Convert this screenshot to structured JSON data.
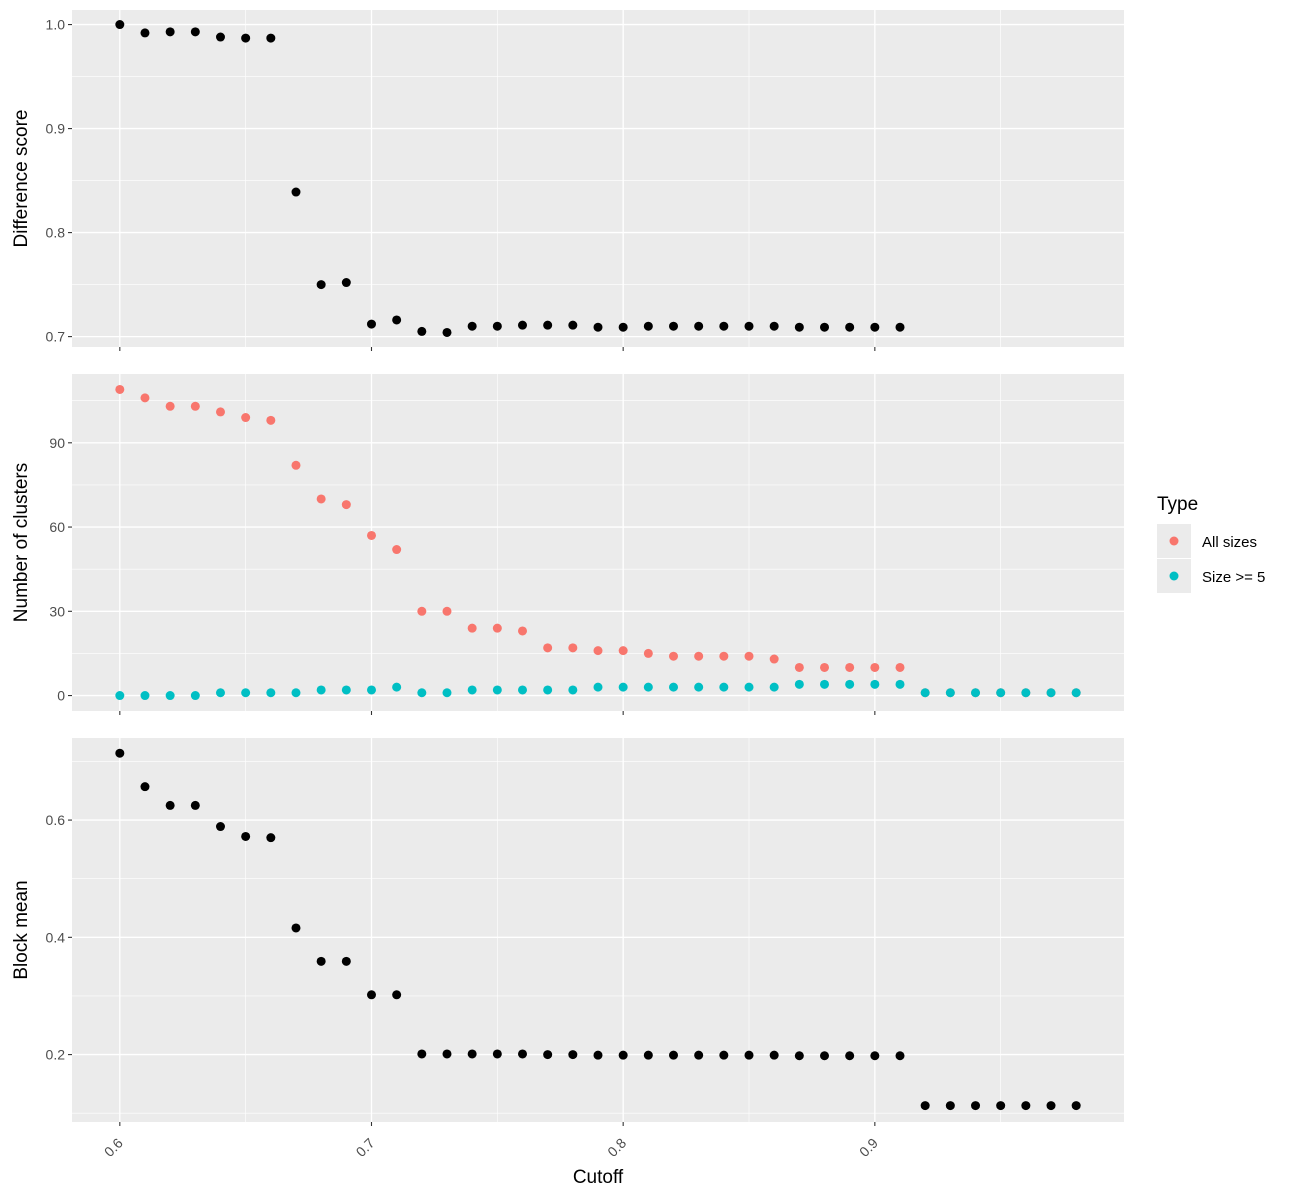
{
  "chart_data": [
    {
      "type": "scatter",
      "ylabel": "Difference score",
      "xlabel": "",
      "xlim": [
        0.581,
        0.999
      ],
      "ylim": [
        0.69,
        1.014
      ],
      "yticks": [
        "0.7",
        "0.8",
        "0.9",
        "1.0"
      ],
      "grid": true,
      "series": [
        {
          "color": "#000000",
          "x": [
            0.6,
            0.61,
            0.62,
            0.63,
            0.64,
            0.65,
            0.66,
            0.67,
            0.68,
            0.69,
            0.7,
            0.71,
            0.72,
            0.73,
            0.74,
            0.75,
            0.76,
            0.77,
            0.78,
            0.79,
            0.8,
            0.81,
            0.82,
            0.83,
            0.84,
            0.85,
            0.86,
            0.87,
            0.88,
            0.89,
            0.9,
            0.91
          ],
          "y": [
            1.0,
            0.992,
            0.993,
            0.993,
            0.988,
            0.987,
            0.987,
            0.839,
            0.75,
            0.752,
            0.712,
            0.716,
            0.705,
            0.704,
            0.71,
            0.71,
            0.711,
            0.711,
            0.711,
            0.709,
            0.709,
            0.71,
            0.71,
            0.71,
            0.71,
            0.71,
            0.71,
            0.709,
            0.709,
            0.709,
            0.709,
            0.709
          ]
        }
      ]
    },
    {
      "type": "scatter",
      "ylabel": "Number of clusters",
      "xlabel": "",
      "xlim": [
        0.581,
        0.999
      ],
      "ylim": [
        -5.5,
        114.5
      ],
      "yticks": [
        "0",
        "30",
        "60",
        "90"
      ],
      "grid": true,
      "legend": {
        "title": "Type",
        "position": "right",
        "entries": [
          "All sizes",
          "Size >= 5"
        ]
      },
      "series": [
        {
          "name": "All sizes",
          "color": "#F8766D",
          "x": [
            0.6,
            0.61,
            0.62,
            0.63,
            0.64,
            0.65,
            0.66,
            0.67,
            0.68,
            0.69,
            0.7,
            0.71,
            0.72,
            0.73,
            0.74,
            0.75,
            0.76,
            0.77,
            0.78,
            0.79,
            0.8,
            0.81,
            0.82,
            0.83,
            0.84,
            0.85,
            0.86,
            0.87,
            0.88,
            0.89,
            0.9,
            0.91,
            0.92,
            0.93,
            0.94,
            0.95,
            0.96,
            0.97,
            0.98
          ],
          "y": [
            109,
            106,
            103,
            103,
            101,
            99,
            98,
            82,
            70,
            68,
            57,
            52,
            30,
            30,
            24,
            24,
            23,
            17,
            17,
            16,
            16,
            15,
            14,
            14,
            14,
            14,
            13,
            10,
            10,
            10,
            10,
            10,
            1,
            1,
            1,
            1,
            1,
            1,
            1
          ]
        },
        {
          "name": "Size >= 5",
          "color": "#00BFC4",
          "x": [
            0.6,
            0.61,
            0.62,
            0.63,
            0.64,
            0.65,
            0.66,
            0.67,
            0.68,
            0.69,
            0.7,
            0.71,
            0.72,
            0.73,
            0.74,
            0.75,
            0.76,
            0.77,
            0.78,
            0.79,
            0.8,
            0.81,
            0.82,
            0.83,
            0.84,
            0.85,
            0.86,
            0.87,
            0.88,
            0.89,
            0.9,
            0.91,
            0.92,
            0.93,
            0.94,
            0.95,
            0.96,
            0.97,
            0.98
          ],
          "y": [
            0,
            0,
            0,
            0,
            1,
            1,
            1,
            1,
            2,
            2,
            2,
            3,
            1,
            1,
            2,
            2,
            2,
            2,
            2,
            3,
            3,
            3,
            3,
            3,
            3,
            3,
            3,
            4,
            4,
            4,
            4,
            4,
            1,
            1,
            1,
            1,
            1,
            1,
            1
          ]
        }
      ]
    },
    {
      "type": "scatter",
      "ylabel": "Block mean",
      "xlabel": "Cutoff",
      "xlim": [
        0.581,
        0.999
      ],
      "xticks": [
        "0.6",
        "0.7",
        "0.8",
        "0.9"
      ],
      "ylim": [
        0.085,
        0.74
      ],
      "yticks": [
        "0.2",
        "0.4",
        "0.6"
      ],
      "grid": true,
      "series": [
        {
          "color": "#000000",
          "x": [
            0.6,
            0.61,
            0.62,
            0.63,
            0.64,
            0.65,
            0.66,
            0.67,
            0.68,
            0.69,
            0.7,
            0.71,
            0.72,
            0.73,
            0.74,
            0.75,
            0.76,
            0.77,
            0.78,
            0.79,
            0.8,
            0.81,
            0.82,
            0.83,
            0.84,
            0.85,
            0.86,
            0.87,
            0.88,
            0.89,
            0.9,
            0.91,
            0.92,
            0.93,
            0.94,
            0.95,
            0.96,
            0.97,
            0.98
          ],
          "y": [
            0.714,
            0.657,
            0.625,
            0.625,
            0.589,
            0.572,
            0.57,
            0.416,
            0.359,
            0.359,
            0.302,
            0.302,
            0.201,
            0.201,
            0.201,
            0.201,
            0.201,
            0.2,
            0.2,
            0.199,
            0.199,
            0.199,
            0.199,
            0.199,
            0.199,
            0.199,
            0.199,
            0.198,
            0.198,
            0.198,
            0.198,
            0.198,
            0.113,
            0.113,
            0.113,
            0.113,
            0.113,
            0.113,
            0.113
          ]
        }
      ]
    }
  ]
}
